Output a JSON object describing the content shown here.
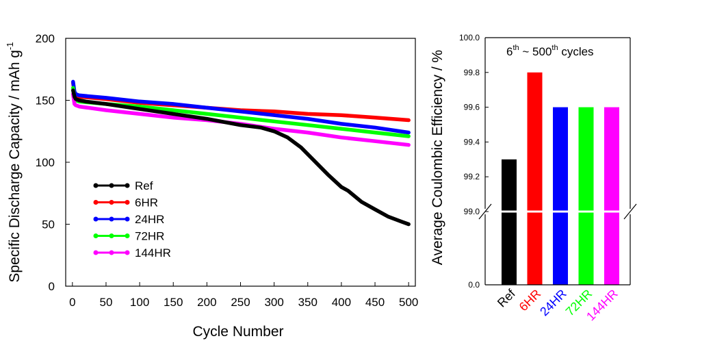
{
  "chart_data": [
    {
      "type": "line",
      "xlabel": "Cycle Number",
      "ylabel": "Specific Discharge Capacity / mAh g",
      "ylabel_sup": "-1",
      "xlim": [
        -10,
        510
      ],
      "ylim": [
        0,
        200
      ],
      "xticks": [
        0,
        50,
        100,
        150,
        200,
        250,
        300,
        350,
        400,
        450,
        500
      ],
      "yticks": [
        0,
        50,
        100,
        150,
        200
      ],
      "legend_position": "lower-left",
      "series": [
        {
          "name": "Ref",
          "color": "#000000",
          "points": [
            [
              1,
              158
            ],
            [
              3,
              153
            ],
            [
              5,
              151
            ],
            [
              10,
              150
            ],
            [
              20,
              149
            ],
            [
              50,
              147
            ],
            [
              100,
              143
            ],
            [
              150,
              139
            ],
            [
              200,
              135
            ],
            [
              250,
              130
            ],
            [
              280,
              128
            ],
            [
              300,
              125
            ],
            [
              320,
              120
            ],
            [
              340,
              112
            ],
            [
              360,
              101
            ],
            [
              380,
              90
            ],
            [
              400,
              80
            ],
            [
              410,
              77
            ],
            [
              430,
              68
            ],
            [
              450,
              62
            ],
            [
              470,
              56
            ],
            [
              490,
              52
            ],
            [
              500,
              50
            ]
          ]
        },
        {
          "name": "6HR",
          "color": "#ff0000",
          "points": [
            [
              1,
              164
            ],
            [
              3,
              156
            ],
            [
              5,
              154
            ],
            [
              10,
              153
            ],
            [
              50,
              151
            ],
            [
              100,
              148
            ],
            [
              150,
              146
            ],
            [
              200,
              144
            ],
            [
              250,
              142
            ],
            [
              300,
              141
            ],
            [
              350,
              139
            ],
            [
              400,
              138
            ],
            [
              450,
              136
            ],
            [
              500,
              134
            ]
          ]
        },
        {
          "name": "24HR",
          "color": "#0000ff",
          "points": [
            [
              1,
              165
            ],
            [
              3,
              157
            ],
            [
              5,
              155
            ],
            [
              10,
              154
            ],
            [
              50,
              152
            ],
            [
              100,
              149
            ],
            [
              150,
              147
            ],
            [
              200,
              144
            ],
            [
              250,
              141
            ],
            [
              300,
              138
            ],
            [
              350,
              135
            ],
            [
              400,
              131
            ],
            [
              450,
              128
            ],
            [
              500,
              124
            ]
          ]
        },
        {
          "name": "72HR",
          "color": "#00ff00",
          "points": [
            [
              1,
              160
            ],
            [
              3,
              152
            ],
            [
              5,
              150
            ],
            [
              10,
              149
            ],
            [
              50,
              147
            ],
            [
              100,
              145
            ],
            [
              150,
              142
            ],
            [
              200,
              139
            ],
            [
              250,
              136
            ],
            [
              300,
              133
            ],
            [
              350,
              130
            ],
            [
              400,
              127
            ],
            [
              450,
              124
            ],
            [
              500,
              121
            ]
          ]
        },
        {
          "name": "144HR",
          "color": "#ff00ff",
          "points": [
            [
              1,
              155
            ],
            [
              3,
              147
            ],
            [
              5,
              146
            ],
            [
              10,
              145
            ],
            [
              50,
              142
            ],
            [
              100,
              139
            ],
            [
              150,
              136
            ],
            [
              200,
              134
            ],
            [
              250,
              131
            ],
            [
              300,
              127
            ],
            [
              350,
              124
            ],
            [
              400,
              120
            ],
            [
              450,
              117
            ],
            [
              500,
              114
            ]
          ]
        }
      ]
    },
    {
      "type": "bar",
      "ylabel": "Average Coulombic Efficiency / %",
      "annotation": {
        "a": "6",
        "a_sup": "th",
        "b": " ~ 500",
        "b_sup": "th",
        "c": " cycles"
      },
      "axis_break": true,
      "yticks_upper": [
        "100.0",
        "99.8",
        "99.6",
        "99.4",
        "99.2",
        "99.0"
      ],
      "ytick_lower": "0.0",
      "ylim_upper": [
        99.0,
        100.0
      ],
      "categories": [
        "Ref",
        "6HR",
        "24HR",
        "72HR",
        "144HR"
      ],
      "values": [
        99.3,
        99.8,
        99.6,
        99.6,
        99.6
      ],
      "colors": [
        "#000000",
        "#ff0000",
        "#0000ff",
        "#00ff00",
        "#ff00ff"
      ]
    }
  ]
}
